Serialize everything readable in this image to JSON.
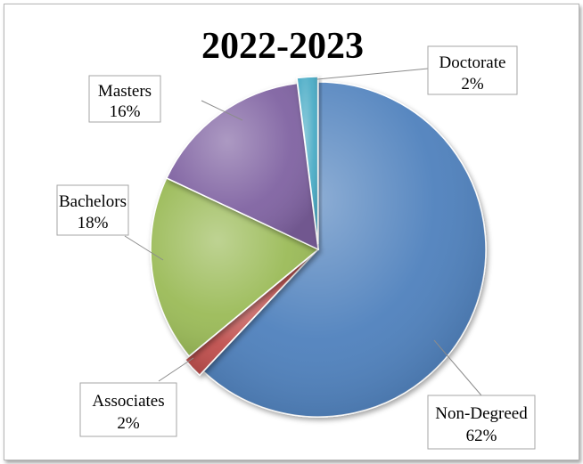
{
  "chart_data": {
    "type": "pie",
    "title": "2022-2023",
    "slices": [
      {
        "label": "Non-Degreed",
        "percent_text": "62%",
        "value": 62,
        "color": "#4f81bd"
      },
      {
        "label": "Associates",
        "percent_text": "2%",
        "value": 2,
        "color": "#c0504d"
      },
      {
        "label": "Bachelors",
        "percent_text": "18%",
        "value": 18,
        "color": "#9bbb59"
      },
      {
        "label": "Masters",
        "percent_text": "16%",
        "value": 16,
        "color": "#8064a2"
      },
      {
        "label": "Doctorate",
        "percent_text": "2%",
        "value": 2,
        "color": "#4bacc6"
      }
    ],
    "legend": "none",
    "data_labels": "callouts"
  }
}
